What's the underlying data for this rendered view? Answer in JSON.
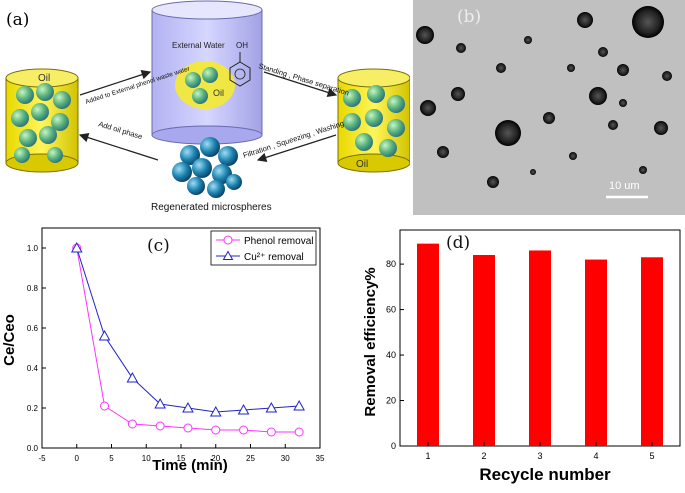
{
  "panel_labels": {
    "a": "(a)",
    "b": "(b)",
    "c": "(c)",
    "d": "(d)"
  },
  "schematic": {
    "oil_left": "Oil",
    "external_water": "External Water",
    "oh_group": "OH",
    "oil_center": "Oil",
    "oil_right": "Oil",
    "arrow_top_left": "Added to External phenol waste water",
    "arrow_top_right": "Standing , Phase separation",
    "arrow_bottom_right": "Filtration , Squeezing , Washing",
    "arrow_bottom_left": "Add oil phase",
    "regenerated": "Regenerated microspheres"
  },
  "micrograph": {
    "scale_bar": "10 um"
  },
  "chart_data": [
    {
      "type": "line",
      "title": "",
      "xlabel": "Time (min)",
      "ylabel": "Ce/Ceo",
      "xlim": [
        -5,
        35
      ],
      "ylim": [
        0.0,
        1.1
      ],
      "xticks": [
        -5,
        0,
        5,
        10,
        15,
        20,
        25,
        30,
        35
      ],
      "yticks": [
        0.0,
        0.2,
        0.4,
        0.6,
        0.8,
        1.0
      ],
      "xtick_labels": [
        "-5",
        "0",
        "5",
        "10",
        "15",
        "20",
        "25",
        "30",
        "35"
      ],
      "ytick_labels": [
        "0.0",
        "0.2",
        "0.4",
        "0.6",
        "0.8",
        "1.0"
      ],
      "legend_position": "top-right",
      "series": [
        {
          "name": "Phenol removal",
          "marker": "circle",
          "color": "#ff33ff",
          "x": [
            0,
            4,
            8,
            12,
            16,
            20,
            24,
            28,
            32
          ],
          "y": [
            1.0,
            0.21,
            0.12,
            0.11,
            0.1,
            0.09,
            0.09,
            0.08,
            0.08
          ]
        },
        {
          "name": "Cu²⁺ removal",
          "marker": "triangle",
          "color": "#2323c8",
          "x": [
            0,
            4,
            8,
            12,
            16,
            20,
            24,
            28,
            32
          ],
          "y": [
            1.0,
            0.56,
            0.35,
            0.22,
            0.2,
            0.18,
            0.19,
            0.2,
            0.21
          ]
        }
      ]
    },
    {
      "type": "bar",
      "title": "",
      "xlabel": "Recycle number",
      "ylabel": "Removal efficiency%",
      "categories": [
        "1",
        "2",
        "3",
        "4",
        "5"
      ],
      "values": [
        89,
        84,
        86,
        82,
        83
      ],
      "ylim": [
        0,
        95
      ],
      "yticks": [
        0,
        20,
        40,
        60,
        80
      ],
      "ytick_labels": [
        "0",
        "20",
        "40",
        "60",
        "80"
      ],
      "bar_color": "#ff0000"
    }
  ]
}
